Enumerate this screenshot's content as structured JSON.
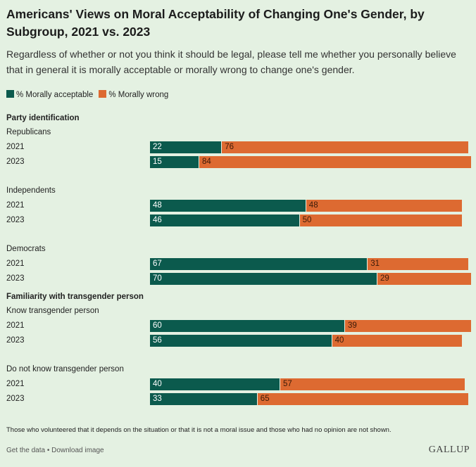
{
  "chart_data": {
    "type": "bar",
    "stacked": true,
    "orientation": "horizontal",
    "title": "Americans' Views on Moral Acceptability of Changing One's Gender, by Subgroup, 2021 vs. 2023",
    "subtitle": "Regardless of whether or not you think it should be legal, please tell me whether you personally believe that in general it is morally acceptable or morally wrong to change one's gender.",
    "legend": [
      {
        "name": "% Morally acceptable",
        "color": "#0b5a4d"
      },
      {
        "name": "% Morally wrong",
        "color": "#dd6a31"
      }
    ],
    "legend_position": "top-left",
    "sections": [
      {
        "header": "Party identification",
        "groups": [
          {
            "name": "Republicans",
            "rows": [
              {
                "year": "2021",
                "acceptable": 22,
                "wrong": 76
              },
              {
                "year": "2023",
                "acceptable": 15,
                "wrong": 84
              }
            ]
          },
          {
            "name": "Independents",
            "rows": [
              {
                "year": "2021",
                "acceptable": 48,
                "wrong": 48
              },
              {
                "year": "2023",
                "acceptable": 46,
                "wrong": 50
              }
            ]
          },
          {
            "name": "Democrats",
            "rows": [
              {
                "year": "2021",
                "acceptable": 67,
                "wrong": 31
              },
              {
                "year": "2023",
                "acceptable": 70,
                "wrong": 29
              }
            ]
          }
        ]
      },
      {
        "header": "Familiarity with transgender person",
        "groups": [
          {
            "name": "Know transgender person",
            "rows": [
              {
                "year": "2021",
                "acceptable": 60,
                "wrong": 39
              },
              {
                "year": "2023",
                "acceptable": 56,
                "wrong": 40
              }
            ]
          },
          {
            "name": "Do not know transgender person",
            "rows": [
              {
                "year": "2021",
                "acceptable": 40,
                "wrong": 57
              },
              {
                "year": "2023",
                "acceptable": 33,
                "wrong": 65
              }
            ]
          }
        ]
      }
    ],
    "note": "Those who volunteered that it depends on the situation or that it is not a moral issue and those who had no opinion are not shown."
  },
  "footer": {
    "get_data": "Get the data",
    "separator": " • ",
    "download": "Download image",
    "brand": "GALLUP"
  }
}
